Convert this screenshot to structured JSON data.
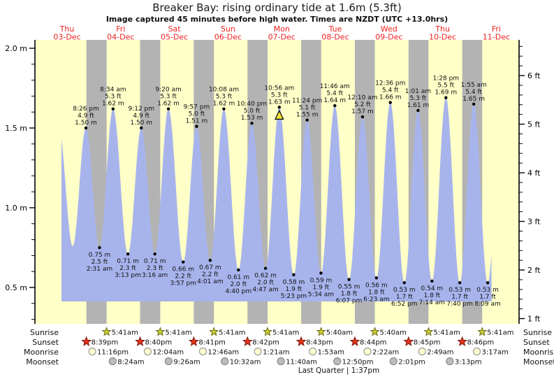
{
  "title": "Breaker Bay: rising  ordinary tide at 1.6m (5.3ft)",
  "subtitle": "Image captured 45 minutes before high water. Times are NZDT (UTC +13.0hrs)",
  "days": [
    {
      "name": "Thu",
      "date": "03-Dec"
    },
    {
      "name": "Fri",
      "date": "04-Dec"
    },
    {
      "name": "Sat",
      "date": "05-Dec"
    },
    {
      "name": "Sun",
      "date": "06-Dec"
    },
    {
      "name": "Mon",
      "date": "07-Dec"
    },
    {
      "name": "Tue",
      "date": "08-Dec"
    },
    {
      "name": "Wed",
      "date": "09-Dec"
    },
    {
      "name": "Thu",
      "date": "10-Dec"
    },
    {
      "name": "Fri",
      "date": "11-Dec"
    }
  ],
  "y_axis_left": {
    "unit": "m",
    "labels": [
      "2.0 m",
      "1.5 m",
      "1.0 m",
      "0.5 m"
    ]
  },
  "y_axis_right": {
    "unit": "ft",
    "labels": [
      "6 ft",
      "5 ft",
      "4 ft",
      "3 ft",
      "2 ft",
      "1 ft"
    ]
  },
  "chart_data": {
    "type": "area",
    "description": "Tide height curve over 9 days; alternating daylight (yellow) and night (gray) bands; annotated high/low tide extremes; yellow triangle marks next high water (current reference).",
    "ylim_m": [
      0.29,
      2.05
    ],
    "ylim_ft": [
      0.95,
      6.72
    ],
    "extremes": [
      {
        "day": 0,
        "time": "8:26 pm",
        "kind": "high",
        "feet_label": "4.9 ft",
        "height_label": "1.50 m",
        "height_m": 1.5
      },
      {
        "day": 1,
        "time": "2:31 am",
        "kind": "low",
        "feet_label": "2.5 ft",
        "height_label": "0.75 m",
        "height_m": 0.75
      },
      {
        "day": 1,
        "time": "8:34 am",
        "kind": "high",
        "feet_label": "5.3 ft",
        "height_label": "1.62 m",
        "height_m": 1.62
      },
      {
        "day": 1,
        "time": "3:13 pm",
        "kind": "low",
        "feet_label": "2.3 ft",
        "height_label": "0.71 m",
        "height_m": 0.71
      },
      {
        "day": 1,
        "time": "9:12 pm",
        "kind": "high",
        "feet_label": "4.9 ft",
        "height_label": "1.50 m",
        "height_m": 1.5
      },
      {
        "day": 2,
        "time": "3:16 am",
        "kind": "low",
        "feet_label": "2.3 ft",
        "height_label": "0.71 m",
        "height_m": 0.71
      },
      {
        "day": 2,
        "time": "9:20 am",
        "kind": "high",
        "feet_label": "5.3 ft",
        "height_label": "1.62 m",
        "height_m": 1.62
      },
      {
        "day": 2,
        "time": "3:57 pm",
        "kind": "low",
        "feet_label": "2.2 ft",
        "height_label": "0.66 m",
        "height_m": 0.66
      },
      {
        "day": 2,
        "time": "9:57 pm",
        "kind": "high",
        "feet_label": "5.0 ft",
        "height_label": "1.51 m",
        "height_m": 1.51
      },
      {
        "day": 3,
        "time": "4:01 am",
        "kind": "low",
        "feet_label": "2.2 ft",
        "height_label": "0.67 m",
        "height_m": 0.67
      },
      {
        "day": 3,
        "time": "10:08 am",
        "kind": "high",
        "feet_label": "5.3 ft",
        "height_label": "1.62 m",
        "height_m": 1.62
      },
      {
        "day": 3,
        "time": "4:40 pm",
        "kind": "low",
        "feet_label": "2.0 ft",
        "height_label": "0.61 m",
        "height_m": 0.61
      },
      {
        "day": 3,
        "time": "10:40 pm",
        "kind": "high",
        "feet_label": "5.0 ft",
        "height_label": "1.53 m",
        "height_m": 1.53
      },
      {
        "day": 4,
        "time": "4:47 am",
        "kind": "low",
        "feet_label": "2.0 ft",
        "height_label": "0.62 m",
        "height_m": 0.62
      },
      {
        "day": 4,
        "time": "10:56 am",
        "kind": "high",
        "feet_label": "5.3 ft",
        "height_label": "1.63 m",
        "height_m": 1.63,
        "current": true
      },
      {
        "day": 4,
        "time": "5:23 pm",
        "kind": "low",
        "feet_label": "1.9 ft",
        "height_label": "0.58 m",
        "height_m": 0.58
      },
      {
        "day": 4,
        "time": "11:24 pm",
        "kind": "high",
        "feet_label": "5.1 ft",
        "height_label": "1.55 m",
        "height_m": 1.55
      },
      {
        "day": 5,
        "time": "5:34 am",
        "kind": "low",
        "feet_label": "1.9 ft",
        "height_label": "0.59 m",
        "height_m": 0.59
      },
      {
        "day": 5,
        "time": "11:46 am",
        "kind": "high",
        "feet_label": "5.4 ft",
        "height_label": "1.64 m",
        "height_m": 1.64
      },
      {
        "day": 5,
        "time": "6:07 pm",
        "kind": "low",
        "feet_label": "1.8 ft",
        "height_label": "0.55 m",
        "height_m": 0.55
      },
      {
        "day": 6,
        "time": "12:10 am",
        "kind": "high",
        "feet_label": "5.2 ft",
        "height_label": "1.57 m",
        "height_m": 1.57
      },
      {
        "day": 6,
        "time": "6:23 am",
        "kind": "low",
        "feet_label": "1.8 ft",
        "height_label": "0.56 m",
        "height_m": 0.56
      },
      {
        "day": 6,
        "time": "12:36 pm",
        "kind": "high",
        "feet_label": "5.4 ft",
        "height_label": "1.66 m",
        "height_m": 1.66
      },
      {
        "day": 6,
        "time": "6:52 pm",
        "kind": "low",
        "feet_label": "1.7 ft",
        "height_label": "0.53 m",
        "height_m": 0.53
      },
      {
        "day": 7,
        "time": "1:01 am",
        "kind": "high",
        "feet_label": "5.3 ft",
        "height_label": "1.61 m",
        "height_m": 1.61
      },
      {
        "day": 7,
        "time": "7:14 am",
        "kind": "low",
        "feet_label": "1.8 ft",
        "height_label": "0.54 m",
        "height_m": 0.54
      },
      {
        "day": 7,
        "time": "1:28 pm",
        "kind": "high",
        "feet_label": "5.5 ft",
        "height_label": "1.69 m",
        "height_m": 1.69
      },
      {
        "day": 7,
        "time": "7:40 pm",
        "kind": "low",
        "feet_label": "1.7 ft",
        "height_label": "0.53 m",
        "height_m": 0.53
      },
      {
        "day": 8,
        "time": "1:55 am",
        "kind": "high",
        "feet_label": "5.4 ft",
        "height_label": "1.65 m",
        "height_m": 1.65
      },
      {
        "day": 8,
        "time": "8:09 am",
        "kind": "low",
        "feet_label": "1.7 ft",
        "height_label": "0.53 m",
        "height_m": 0.53
      }
    ],
    "curve_edge_anchors": [
      {
        "day": 0,
        "time": "8:15 am",
        "height_m": 1.5
      },
      {
        "day": 0,
        "time": "2:30 pm",
        "height_m": 0.76
      },
      {
        "day": 8,
        "time": "2:26 pm",
        "height_m": 1.62
      }
    ],
    "data_start": {
      "day": 0,
      "time": "9:30 am"
    },
    "data_end": {
      "day": 8,
      "time": "9:55 am"
    }
  },
  "footer": {
    "rows": [
      {
        "label": "Sunrise",
        "icon": "sunrise-star",
        "entries": [
          {
            "day": 1,
            "time": "5:41am"
          },
          {
            "day": 2,
            "time": "5:41am"
          },
          {
            "day": 3,
            "time": "5:41am"
          },
          {
            "day": 4,
            "time": "5:41am"
          },
          {
            "day": 5,
            "time": "5:40am"
          },
          {
            "day": 6,
            "time": "5:40am"
          },
          {
            "day": 7,
            "time": "5:41am"
          },
          {
            "day": 8,
            "time": "5:41am"
          }
        ]
      },
      {
        "label": "Sunset",
        "icon": "sunset-star",
        "entries": [
          {
            "day": 0,
            "time": "8:39pm"
          },
          {
            "day": 1,
            "time": "8:40pm"
          },
          {
            "day": 2,
            "time": "8:41pm"
          },
          {
            "day": 3,
            "time": "8:42pm"
          },
          {
            "day": 4,
            "time": "8:43pm"
          },
          {
            "day": 5,
            "time": "8:44pm"
          },
          {
            "day": 6,
            "time": "8:45pm"
          },
          {
            "day": 7,
            "time": "8:46pm"
          }
        ]
      },
      {
        "label": "Moonrise",
        "icon": "moonrise-circle",
        "entries": [
          {
            "day": 0,
            "time": "11:16pm"
          },
          {
            "day": 2,
            "time": "12:04am"
          },
          {
            "day": 3,
            "time": "12:46am"
          },
          {
            "day": 4,
            "time": "1:21am"
          },
          {
            "day": 5,
            "time": "1:53am"
          },
          {
            "day": 6,
            "time": "2:22am"
          },
          {
            "day": 7,
            "time": "2:49am"
          },
          {
            "day": 8,
            "time": "3:17am"
          }
        ]
      },
      {
        "label": "Moonset",
        "icon": "moonset-circle",
        "entries": [
          {
            "day": 1,
            "time": "8:24am"
          },
          {
            "day": 2,
            "time": "9:26am"
          },
          {
            "day": 3,
            "time": "10:32am"
          },
          {
            "day": 4,
            "time": "11:40am"
          },
          {
            "day": 5,
            "time": "12:50pm"
          },
          {
            "day": 6,
            "time": "2:01pm"
          },
          {
            "day": 7,
            "time": "3:13pm"
          }
        ]
      }
    ],
    "moon_phase": "Last Quarter | 1:37pm"
  },
  "colors": {
    "daylight_bg": "#ffffc8",
    "night_bg": "#b3b3b3",
    "tide_fill": "#a7b4ec",
    "day_label": "#ee2020",
    "marker_fill": "#f2e43c",
    "sunrise_star": "#c9cd37",
    "sunset_star": "#e2341d",
    "moonrise_circle": "#ffffd0",
    "moonset_circle": "#bdbdbd",
    "text": "#111111"
  }
}
